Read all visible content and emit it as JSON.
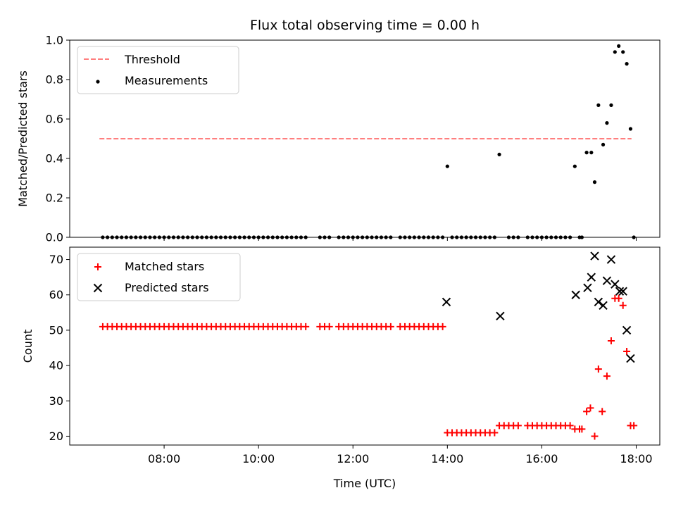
{
  "chart_data": {
    "title": "Flux total observing time = 0.00 h",
    "xlabel": "Time (UTC)",
    "x_ticks": [
      "08:00",
      "10:00",
      "12:00",
      "14:00",
      "16:00",
      "18:00"
    ],
    "x_range_hours": [
      6.0,
      18.5
    ],
    "colors": {
      "threshold": "#ff7f7f",
      "measurements": "#000000",
      "matched": "#ff0000",
      "predicted": "#000000"
    },
    "panels": [
      {
        "type": "scatter",
        "ylabel": "Matched/Predicted stars",
        "ylim": [
          0,
          1.0
        ],
        "y_ticks": [
          "0.0",
          "0.2",
          "0.4",
          "0.6",
          "0.8",
          "1.0"
        ],
        "legend_position": "upper-left",
        "series": [
          {
            "name": "Threshold",
            "style": "dashed-line",
            "points": [
              [
                6.63,
                0.5
              ],
              [
                17.9,
                0.5
              ]
            ]
          },
          {
            "name": "Measurements",
            "style": "dot",
            "points": [
              [
                6.7,
                0
              ],
              [
                6.8,
                0
              ],
              [
                6.9,
                0
              ],
              [
                7.0,
                0
              ],
              [
                7.1,
                0
              ],
              [
                7.2,
                0
              ],
              [
                7.3,
                0
              ],
              [
                7.4,
                0
              ],
              [
                7.5,
                0
              ],
              [
                7.6,
                0
              ],
              [
                7.7,
                0
              ],
              [
                7.8,
                0
              ],
              [
                7.9,
                0
              ],
              [
                8.0,
                0
              ],
              [
                8.1,
                0
              ],
              [
                8.2,
                0
              ],
              [
                8.3,
                0
              ],
              [
                8.4,
                0
              ],
              [
                8.5,
                0
              ],
              [
                8.6,
                0
              ],
              [
                8.7,
                0
              ],
              [
                8.8,
                0
              ],
              [
                8.9,
                0
              ],
              [
                9.0,
                0
              ],
              [
                9.1,
                0
              ],
              [
                9.2,
                0
              ],
              [
                9.3,
                0
              ],
              [
                9.4,
                0
              ],
              [
                9.5,
                0
              ],
              [
                9.6,
                0
              ],
              [
                9.7,
                0
              ],
              [
                9.8,
                0
              ],
              [
                9.9,
                0
              ],
              [
                10.0,
                0
              ],
              [
                10.1,
                0
              ],
              [
                10.2,
                0
              ],
              [
                10.3,
                0
              ],
              [
                10.4,
                0
              ],
              [
                10.5,
                0
              ],
              [
                10.6,
                0
              ],
              [
                10.7,
                0
              ],
              [
                10.8,
                0
              ],
              [
                10.9,
                0
              ],
              [
                11.0,
                0
              ],
              [
                11.3,
                0
              ],
              [
                11.4,
                0
              ],
              [
                11.5,
                0
              ],
              [
                11.7,
                0
              ],
              [
                11.8,
                0
              ],
              [
                11.9,
                0
              ],
              [
                12.0,
                0
              ],
              [
                12.1,
                0
              ],
              [
                12.2,
                0
              ],
              [
                12.3,
                0
              ],
              [
                12.4,
                0
              ],
              [
                12.5,
                0
              ],
              [
                12.6,
                0
              ],
              [
                12.7,
                0
              ],
              [
                12.8,
                0
              ],
              [
                13.0,
                0
              ],
              [
                13.1,
                0
              ],
              [
                13.2,
                0
              ],
              [
                13.3,
                0
              ],
              [
                13.4,
                0
              ],
              [
                13.5,
                0
              ],
              [
                13.6,
                0
              ],
              [
                13.7,
                0
              ],
              [
                13.8,
                0
              ],
              [
                13.9,
                0
              ],
              [
                14.0,
                0.36
              ],
              [
                14.1,
                0
              ],
              [
                14.2,
                0
              ],
              [
                14.3,
                0
              ],
              [
                14.4,
                0
              ],
              [
                14.5,
                0
              ],
              [
                14.6,
                0
              ],
              [
                14.7,
                0
              ],
              [
                14.8,
                0
              ],
              [
                14.9,
                0
              ],
              [
                15.0,
                0
              ],
              [
                15.1,
                0.42
              ],
              [
                15.3,
                0
              ],
              [
                15.4,
                0
              ],
              [
                15.5,
                0
              ],
              [
                15.7,
                0
              ],
              [
                15.8,
                0
              ],
              [
                15.9,
                0
              ],
              [
                16.0,
                0
              ],
              [
                16.1,
                0
              ],
              [
                16.2,
                0
              ],
              [
                16.3,
                0
              ],
              [
                16.4,
                0
              ],
              [
                16.5,
                0
              ],
              [
                16.6,
                0
              ],
              [
                16.7,
                0.36
              ],
              [
                16.8,
                0
              ],
              [
                16.85,
                0
              ],
              [
                16.95,
                0.43
              ],
              [
                17.05,
                0.43
              ],
              [
                17.12,
                0.28
              ],
              [
                17.2,
                0.67
              ],
              [
                17.3,
                0.47
              ],
              [
                17.38,
                0.58
              ],
              [
                17.47,
                0.67
              ],
              [
                17.55,
                0.94
              ],
              [
                17.63,
                0.97
              ],
              [
                17.72,
                0.94
              ],
              [
                17.8,
                0.88
              ],
              [
                17.88,
                0.55
              ],
              [
                17.95,
                0
              ]
            ]
          }
        ]
      },
      {
        "type": "scatter",
        "ylabel": "Count",
        "ylim": [
          17.5,
          73.5
        ],
        "y_ticks": [
          "20",
          "30",
          "40",
          "50",
          "60",
          "70"
        ],
        "legend_position": "upper-left",
        "series": [
          {
            "name": "Matched stars",
            "style": "plus",
            "points": [
              [
                6.7,
                51
              ],
              [
                6.8,
                51
              ],
              [
                6.9,
                51
              ],
              [
                7.0,
                51
              ],
              [
                7.1,
                51
              ],
              [
                7.2,
                51
              ],
              [
                7.3,
                51
              ],
              [
                7.4,
                51
              ],
              [
                7.5,
                51
              ],
              [
                7.6,
                51
              ],
              [
                7.7,
                51
              ],
              [
                7.8,
                51
              ],
              [
                7.9,
                51
              ],
              [
                8.0,
                51
              ],
              [
                8.1,
                51
              ],
              [
                8.2,
                51
              ],
              [
                8.3,
                51
              ],
              [
                8.4,
                51
              ],
              [
                8.5,
                51
              ],
              [
                8.6,
                51
              ],
              [
                8.7,
                51
              ],
              [
                8.8,
                51
              ],
              [
                8.9,
                51
              ],
              [
                9.0,
                51
              ],
              [
                9.1,
                51
              ],
              [
                9.2,
                51
              ],
              [
                9.3,
                51
              ],
              [
                9.4,
                51
              ],
              [
                9.5,
                51
              ],
              [
                9.6,
                51
              ],
              [
                9.7,
                51
              ],
              [
                9.8,
                51
              ],
              [
                9.9,
                51
              ],
              [
                10.0,
                51
              ],
              [
                10.1,
                51
              ],
              [
                10.2,
                51
              ],
              [
                10.3,
                51
              ],
              [
                10.4,
                51
              ],
              [
                10.5,
                51
              ],
              [
                10.6,
                51
              ],
              [
                10.7,
                51
              ],
              [
                10.8,
                51
              ],
              [
                10.9,
                51
              ],
              [
                11.0,
                51
              ],
              [
                11.3,
                51
              ],
              [
                11.4,
                51
              ],
              [
                11.5,
                51
              ],
              [
                11.7,
                51
              ],
              [
                11.8,
                51
              ],
              [
                11.9,
                51
              ],
              [
                12.0,
                51
              ],
              [
                12.1,
                51
              ],
              [
                12.2,
                51
              ],
              [
                12.3,
                51
              ],
              [
                12.4,
                51
              ],
              [
                12.5,
                51
              ],
              [
                12.6,
                51
              ],
              [
                12.7,
                51
              ],
              [
                12.8,
                51
              ],
              [
                13.0,
                51
              ],
              [
                13.1,
                51
              ],
              [
                13.2,
                51
              ],
              [
                13.3,
                51
              ],
              [
                13.4,
                51
              ],
              [
                13.5,
                51
              ],
              [
                13.6,
                51
              ],
              [
                13.7,
                51
              ],
              [
                13.8,
                51
              ],
              [
                13.9,
                51
              ],
              [
                14.0,
                21
              ],
              [
                14.1,
                21
              ],
              [
                14.2,
                21
              ],
              [
                14.3,
                21
              ],
              [
                14.4,
                21
              ],
              [
                14.5,
                21
              ],
              [
                14.6,
                21
              ],
              [
                14.7,
                21
              ],
              [
                14.8,
                21
              ],
              [
                14.9,
                21
              ],
              [
                15.0,
                21
              ],
              [
                15.1,
                23
              ],
              [
                15.2,
                23
              ],
              [
                15.3,
                23
              ],
              [
                15.4,
                23
              ],
              [
                15.5,
                23
              ],
              [
                15.7,
                23
              ],
              [
                15.8,
                23
              ],
              [
                15.9,
                23
              ],
              [
                16.0,
                23
              ],
              [
                16.1,
                23
              ],
              [
                16.2,
                23
              ],
              [
                16.3,
                23
              ],
              [
                16.4,
                23
              ],
              [
                16.5,
                23
              ],
              [
                16.6,
                23
              ],
              [
                16.7,
                22
              ],
              [
                16.8,
                22
              ],
              [
                16.85,
                22
              ],
              [
                16.95,
                27
              ],
              [
                17.03,
                28
              ],
              [
                17.12,
                20
              ],
              [
                17.2,
                39
              ],
              [
                17.28,
                27
              ],
              [
                17.38,
                37
              ],
              [
                17.47,
                47
              ],
              [
                17.55,
                59
              ],
              [
                17.63,
                59
              ],
              [
                17.72,
                57
              ],
              [
                17.8,
                44
              ],
              [
                17.88,
                23
              ],
              [
                17.95,
                23
              ]
            ]
          },
          {
            "name": "Predicted stars",
            "style": "cross",
            "points": [
              [
                13.98,
                58
              ],
              [
                15.12,
                54
              ],
              [
                16.72,
                60
              ],
              [
                16.97,
                62
              ],
              [
                17.05,
                65
              ],
              [
                17.12,
                71
              ],
              [
                17.2,
                58
              ],
              [
                17.3,
                57
              ],
              [
                17.38,
                64
              ],
              [
                17.47,
                70
              ],
              [
                17.55,
                63
              ],
              [
                17.65,
                61
              ],
              [
                17.72,
                61
              ],
              [
                17.8,
                50
              ],
              [
                17.88,
                42
              ]
            ]
          }
        ]
      }
    ]
  }
}
